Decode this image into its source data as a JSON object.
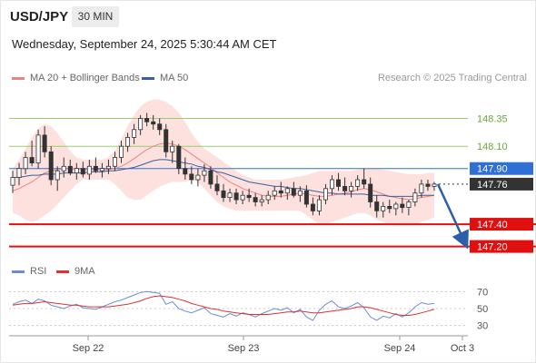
{
  "header": {
    "symbol": "USD/JPY",
    "timeframe": "30 MIN",
    "datetime": "Wednesday, September 24, 2025 5:30:44 AM CET"
  },
  "legend": {
    "ma20_label": "MA 20 + Bollinger Bands",
    "ma50_label": "MA 50",
    "credit": "Research © 2025 Trading Central"
  },
  "rsi_legend": {
    "rsi_label": "RSI",
    "ma_label": "9MA"
  },
  "colors": {
    "ma20": "#f08080",
    "band_fill": "#fbd9d6",
    "ma50": "#3a5fa0",
    "bull": "#ffffff",
    "bear": "#333333",
    "support": "#e01010",
    "resistance": "#9acd6a",
    "pivot": "#2f6fd6",
    "current": "#333333",
    "arrow": "#2c5fa8",
    "rsi": "#6a8cd6",
    "rsi_ma": "#e03030"
  },
  "chart_data": [
    {
      "type": "candlestick",
      "title": "USD/JPY 30 MIN",
      "x_ticks": [
        "Sep 22",
        "Sep 23",
        "Sep 24",
        "Oct 3"
      ],
      "y_range": [
        147.05,
        148.55
      ],
      "candles": [
        [
          147.75,
          147.88,
          147.68,
          147.82
        ],
        [
          147.82,
          147.95,
          147.75,
          147.9
        ],
        [
          147.9,
          148.05,
          147.85,
          148.0
        ],
        [
          148.0,
          148.15,
          147.92,
          147.95
        ],
        [
          147.95,
          148.25,
          147.9,
          148.2
        ],
        [
          148.2,
          148.28,
          148.0,
          148.05
        ],
        [
          148.05,
          148.1,
          147.75,
          147.8
        ],
        [
          147.8,
          147.92,
          147.7,
          147.88
        ],
        [
          147.88,
          148.0,
          147.82,
          147.92
        ],
        [
          147.92,
          147.98,
          147.84,
          147.86
        ],
        [
          147.86,
          147.95,
          147.8,
          147.9
        ],
        [
          147.9,
          147.96,
          147.82,
          147.85
        ],
        [
          147.85,
          147.98,
          147.8,
          147.92
        ],
        [
          147.92,
          148.0,
          147.86,
          147.88
        ],
        [
          147.88,
          147.95,
          147.82,
          147.9
        ],
        [
          147.9,
          147.98,
          147.85,
          147.92
        ],
        [
          147.92,
          148.05,
          147.88,
          148.0
        ],
        [
          148.0,
          148.15,
          147.95,
          148.1
        ],
        [
          148.1,
          148.22,
          148.05,
          148.18
        ],
        [
          148.18,
          148.3,
          148.12,
          148.25
        ],
        [
          148.25,
          148.38,
          148.2,
          148.35
        ],
        [
          148.35,
          148.4,
          148.28,
          148.32
        ],
        [
          148.32,
          148.38,
          148.25,
          148.3
        ],
        [
          148.3,
          148.35,
          148.2,
          148.25
        ],
        [
          148.25,
          148.3,
          148.0,
          148.05
        ],
        [
          148.05,
          148.15,
          147.95,
          148.1
        ],
        [
          148.1,
          148.12,
          147.85,
          147.9
        ],
        [
          147.9,
          148.0,
          147.8,
          147.85
        ],
        [
          147.85,
          147.92,
          147.76,
          147.8
        ],
        [
          147.8,
          147.9,
          147.74,
          147.84
        ],
        [
          147.84,
          147.94,
          147.78,
          147.88
        ],
        [
          147.88,
          147.92,
          147.72,
          147.76
        ],
        [
          147.76,
          147.84,
          147.66,
          147.7
        ],
        [
          147.7,
          147.76,
          147.6,
          147.64
        ],
        [
          147.64,
          147.72,
          147.6,
          147.68
        ],
        [
          147.68,
          147.72,
          147.58,
          147.62
        ],
        [
          147.62,
          147.7,
          147.58,
          147.66
        ],
        [
          147.66,
          147.72,
          147.6,
          147.64
        ],
        [
          147.64,
          147.68,
          147.56,
          147.6
        ],
        [
          147.6,
          147.66,
          147.56,
          147.62
        ],
        [
          147.62,
          147.7,
          147.58,
          147.66
        ],
        [
          147.66,
          147.74,
          147.62,
          147.7
        ],
        [
          147.7,
          147.78,
          147.64,
          147.68
        ],
        [
          147.68,
          147.74,
          147.62,
          147.72
        ],
        [
          147.72,
          147.78,
          147.64,
          147.66
        ],
        [
          147.66,
          147.74,
          147.6,
          147.7
        ],
        [
          147.7,
          147.75,
          147.55,
          147.58
        ],
        [
          147.58,
          147.64,
          147.48,
          147.52
        ],
        [
          147.52,
          147.66,
          147.48,
          147.62
        ],
        [
          147.62,
          147.76,
          147.58,
          147.72
        ],
        [
          147.72,
          147.84,
          147.66,
          147.8
        ],
        [
          147.8,
          147.86,
          147.7,
          147.74
        ],
        [
          147.74,
          147.82,
          147.66,
          147.7
        ],
        [
          147.7,
          147.78,
          147.64,
          147.74
        ],
        [
          147.74,
          147.84,
          147.7,
          147.8
        ],
        [
          147.8,
          147.9,
          147.72,
          147.76
        ],
        [
          147.76,
          147.82,
          147.55,
          147.6
        ],
        [
          147.6,
          147.66,
          147.46,
          147.52
        ],
        [
          147.52,
          147.6,
          147.46,
          147.56
        ],
        [
          147.56,
          147.62,
          147.5,
          147.54
        ],
        [
          147.54,
          147.6,
          147.48,
          147.58
        ],
        [
          147.58,
          147.64,
          147.5,
          147.55
        ],
        [
          147.55,
          147.62,
          147.48,
          147.6
        ],
        [
          147.6,
          147.72,
          147.56,
          147.68
        ],
        [
          147.68,
          147.8,
          147.64,
          147.76
        ],
        [
          147.76,
          147.8,
          147.7,
          147.74
        ],
        [
          147.74,
          147.78,
          147.7,
          147.76
        ]
      ],
      "ma20": [
        147.7,
        147.72,
        147.75,
        147.78,
        147.82,
        147.86,
        147.88,
        147.89,
        147.9,
        147.9,
        147.9,
        147.89,
        147.89,
        147.89,
        147.89,
        147.89,
        147.9,
        147.92,
        147.95,
        147.99,
        148.03,
        148.07,
        148.1,
        148.12,
        148.13,
        148.12,
        148.1,
        148.07,
        148.03,
        147.99,
        147.95,
        147.91,
        147.86,
        147.82,
        147.78,
        147.75,
        147.72,
        147.7,
        147.68,
        147.66,
        147.65,
        147.65,
        147.65,
        147.66,
        147.67,
        147.68,
        147.67,
        147.66,
        147.65,
        147.65,
        147.66,
        147.67,
        147.68,
        147.69,
        147.71,
        147.72,
        147.71,
        147.69,
        147.67,
        147.65,
        147.64,
        147.63,
        147.62,
        147.63,
        147.64,
        147.65,
        147.66
      ],
      "bb_upper": [
        147.9,
        147.98,
        148.08,
        148.18,
        148.26,
        148.3,
        148.28,
        148.22,
        148.14,
        148.06,
        148.0,
        147.98,
        147.98,
        147.98,
        147.98,
        148.0,
        148.06,
        148.16,
        148.28,
        148.38,
        148.46,
        148.5,
        148.52,
        148.52,
        148.5,
        148.46,
        148.4,
        148.32,
        148.22,
        148.14,
        148.08,
        148.04,
        148.0,
        147.96,
        147.92,
        147.88,
        147.84,
        147.82,
        147.8,
        147.8,
        147.8,
        147.8,
        147.8,
        147.81,
        147.82,
        147.83,
        147.84,
        147.86,
        147.88,
        147.88,
        147.88,
        147.88,
        147.88,
        147.88,
        147.89,
        147.9,
        147.9,
        147.9,
        147.89,
        147.88,
        147.87,
        147.86,
        147.85,
        147.85,
        147.85,
        147.86,
        147.86
      ],
      "bb_lower": [
        147.5,
        147.48,
        147.44,
        147.42,
        147.44,
        147.48,
        147.52,
        147.58,
        147.64,
        147.7,
        147.76,
        147.8,
        147.8,
        147.8,
        147.8,
        147.8,
        147.76,
        147.7,
        147.64,
        147.62,
        147.62,
        147.66,
        147.7,
        147.74,
        147.76,
        147.78,
        147.78,
        147.78,
        147.8,
        147.78,
        147.72,
        147.66,
        147.6,
        147.56,
        147.54,
        147.52,
        147.52,
        147.52,
        147.52,
        147.52,
        147.52,
        147.52,
        147.52,
        147.52,
        147.52,
        147.52,
        147.48,
        147.44,
        147.4,
        147.4,
        147.42,
        147.44,
        147.46,
        147.48,
        147.5,
        147.5,
        147.48,
        147.44,
        147.42,
        147.4,
        147.4,
        147.4,
        147.4,
        147.4,
        147.42,
        147.44,
        147.46
      ],
      "ma50": [
        147.82,
        147.82,
        147.83,
        147.84,
        147.84,
        147.85,
        147.85,
        147.85,
        147.86,
        147.86,
        147.86,
        147.86,
        147.87,
        147.87,
        147.87,
        147.88,
        147.88,
        147.89,
        147.9,
        147.91,
        147.93,
        147.95,
        147.97,
        147.98,
        147.98,
        147.97,
        147.96,
        147.95,
        147.94,
        147.92,
        147.91,
        147.89,
        147.87,
        147.86,
        147.84,
        147.82,
        147.8,
        147.78,
        147.77,
        147.76,
        147.75,
        147.74,
        147.74,
        147.73,
        147.72,
        147.72,
        147.71,
        147.7,
        147.69,
        147.68,
        147.68,
        147.67,
        147.67,
        147.67,
        147.67,
        147.67,
        147.66,
        147.66,
        147.66,
        147.65,
        147.65,
        147.65,
        147.65,
        147.65,
        147.66,
        147.66,
        147.66
      ],
      "levels": [
        {
          "value": 148.35,
          "label": "148.35",
          "role": "resistance"
        },
        {
          "value": 148.1,
          "label": "148.10",
          "role": "resistance"
        },
        {
          "value": 147.9,
          "label": "147.90",
          "role": "pivot"
        },
        {
          "value": 147.76,
          "label": "147.76",
          "role": "current"
        },
        {
          "value": 147.4,
          "label": "147.40",
          "role": "support"
        },
        {
          "value": 147.2,
          "label": "147.20",
          "role": "support"
        }
      ],
      "arrow": {
        "from": 147.76,
        "to": 147.2
      }
    },
    {
      "type": "line",
      "title": "RSI",
      "y_ticks": [
        "70",
        "50",
        "30"
      ],
      "y_range": [
        20,
        80
      ],
      "series": [
        {
          "name": "RSI",
          "values": [
            55,
            58,
            60,
            56,
            61,
            59,
            54,
            52,
            50,
            53,
            55,
            51,
            50,
            49,
            52,
            55,
            58,
            60,
            63,
            66,
            69,
            70,
            69,
            68,
            55,
            58,
            50,
            47,
            45,
            48,
            51,
            44,
            42,
            40,
            44,
            41,
            45,
            43,
            40,
            44,
            47,
            50,
            48,
            51,
            45,
            49,
            40,
            36,
            48,
            55,
            59,
            52,
            50,
            53,
            57,
            51,
            40,
            36,
            41,
            39,
            44,
            40,
            45,
            52,
            57,
            55,
            56
          ]
        },
        {
          "name": "9MA",
          "values": [
            54,
            55,
            56,
            56,
            57,
            58,
            57,
            56,
            55,
            54,
            54,
            53,
            52,
            52,
            52,
            52,
            53,
            54,
            55,
            57,
            59,
            62,
            64,
            65,
            64,
            63,
            61,
            59,
            56,
            54,
            52,
            50,
            49,
            47,
            46,
            45,
            44,
            43,
            43,
            43,
            43,
            44,
            45,
            46,
            46,
            47,
            46,
            45,
            45,
            46,
            47,
            48,
            49,
            50,
            52,
            52,
            51,
            49,
            47,
            45,
            43,
            42,
            42,
            43,
            45,
            47,
            49
          ]
        }
      ]
    }
  ]
}
